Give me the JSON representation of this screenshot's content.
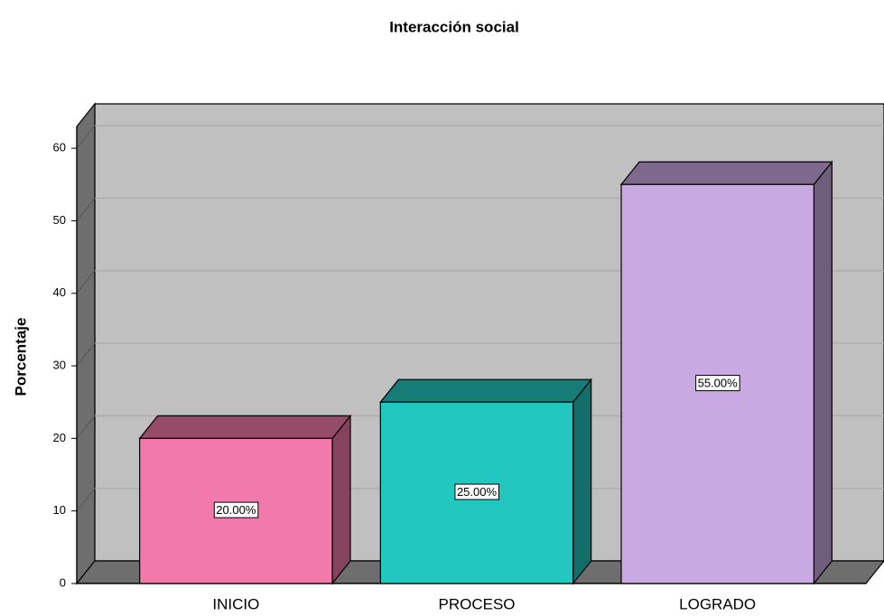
{
  "chart_data": {
    "type": "bar3d",
    "title": "Interacción social",
    "y_label": "Porcentaje",
    "categories": [
      "INICIO",
      "PROCESO",
      "LOGRADO"
    ],
    "values": [
      20,
      25,
      55
    ],
    "value_labels": [
      "20.00%",
      "25.00%",
      "55.00%"
    ],
    "colors": [
      "#f27aaa",
      "#22c8c0",
      "#c9a9e2"
    ],
    "ylim": [
      0,
      63
    ],
    "yticks": [
      0,
      10,
      20,
      30,
      40,
      50,
      60
    ],
    "grid": true
  }
}
